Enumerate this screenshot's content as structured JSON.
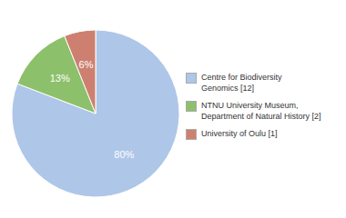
{
  "chart_data": {
    "type": "pie",
    "categories": [
      "Centre for Biodiversity\nGenomics [12]",
      "NTNU University Museum,\nDepartment of Natural History [2]",
      "University of Oulu [1]"
    ],
    "values": [
      80,
      13,
      6
    ],
    "value_labels": [
      "80%",
      "13%",
      "6%"
    ],
    "colors": [
      "#aec6e8",
      "#8dc06b",
      "#cd8070"
    ],
    "data_labels": true,
    "legend": "right"
  }
}
